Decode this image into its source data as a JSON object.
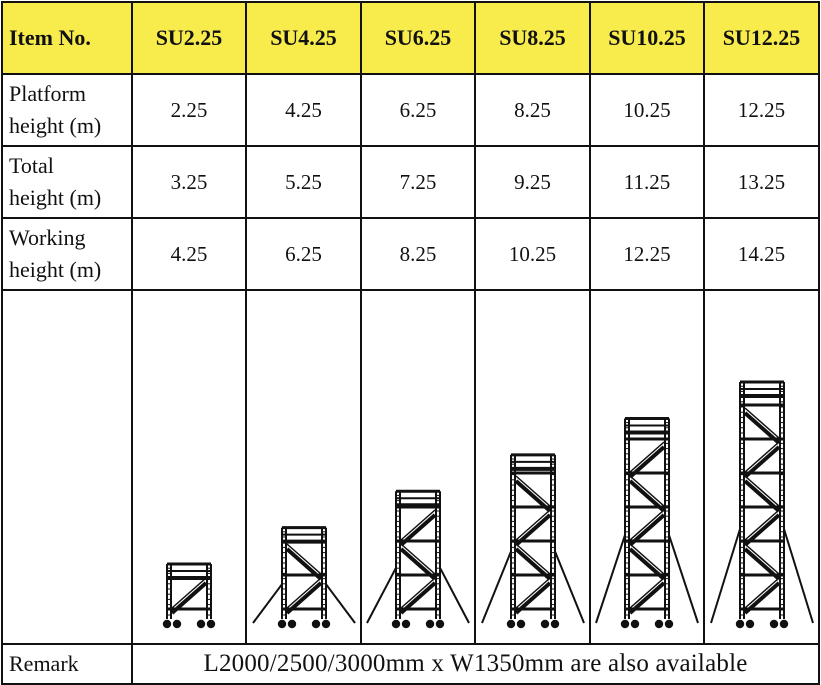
{
  "header": {
    "first": "Item No.",
    "models": [
      "SU2.25",
      "SU4.25",
      "SU6.25",
      "SU8.25",
      "SU10.25",
      "SU12.25"
    ]
  },
  "rows": [
    {
      "label_lines": [
        "Platform",
        "height (m)"
      ],
      "values": [
        "2.25",
        "4.25",
        "6.25",
        "8.25",
        "10.25",
        "12.25"
      ]
    },
    {
      "label_lines": [
        "Total",
        "height (m)"
      ],
      "values": [
        "3.25",
        "5.25",
        "7.25",
        "9.25",
        "11.25",
        "13.25"
      ]
    },
    {
      "label_lines": [
        "Working",
        "height (m)"
      ],
      "values": [
        "4.25",
        "6.25",
        "8.25",
        "10.25",
        "12.25",
        "14.25"
      ]
    }
  ],
  "illustration": {
    "icon": "scaffold-tower-icon",
    "platform_heights_m": [
      2.25,
      4.25,
      6.25,
      8.25,
      10.25,
      12.25
    ],
    "outriggers": [
      false,
      true,
      true,
      true,
      true,
      true
    ]
  },
  "remark": {
    "label": "Remark",
    "text": "L2000/2500/3000mm x W1350mm are also available"
  }
}
